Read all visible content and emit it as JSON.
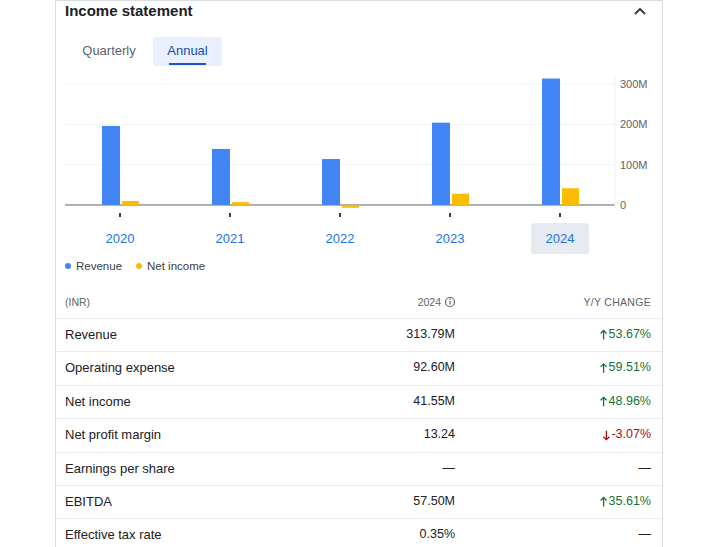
{
  "header": {
    "title": "Income statement"
  },
  "tabs": {
    "items": [
      "Quarterly",
      "Annual"
    ],
    "selected": "Annual"
  },
  "chart_data": {
    "type": "bar",
    "categories": [
      "2020",
      "2021",
      "2022",
      "2023",
      "2024"
    ],
    "series": [
      {
        "name": "Revenue",
        "color": "#4285f4",
        "values": [
          196,
          139,
          114,
          204.2,
          313.79
        ]
      },
      {
        "name": "Net income",
        "color": "#fbbc04",
        "values": [
          10,
          7,
          -7,
          27.9,
          41.55
        ]
      }
    ],
    "ylim": [
      -10,
      320
    ],
    "yticks": [
      0,
      {
        "value": 100,
        "label": "100M"
      },
      {
        "value": 200,
        "label": "200M"
      },
      {
        "value": 300,
        "label": "300M"
      }
    ],
    "grid": true,
    "legend": "bottom-left"
  },
  "table": {
    "header": [
      "(INR)",
      "2024",
      "Y/Y CHANGE"
    ],
    "rows": [
      {
        "label": "Revenue",
        "value": "313.79M",
        "change": {
          "direction": "up",
          "text": "53.67%"
        }
      },
      {
        "label": "Operating expense",
        "value": "92.60M",
        "change": {
          "direction": "up",
          "text": "59.51%"
        }
      },
      {
        "label": "Net income",
        "value": "41.55M",
        "change": {
          "direction": "up",
          "text": "48.96%"
        }
      },
      {
        "label": "Net profit margin",
        "value": "13.24",
        "change": {
          "direction": "down",
          "text": "-3.07%"
        }
      },
      {
        "label": "Earnings per share",
        "value": "—",
        "change": {
          "direction": "none",
          "text": "—"
        }
      },
      {
        "label": "EBITDA",
        "value": "57.50M",
        "change": {
          "direction": "up",
          "text": "35.61%"
        }
      },
      {
        "label": "Effective tax rate",
        "value": "0.35%",
        "change": {
          "direction": "none",
          "text": "—"
        }
      }
    ]
  }
}
